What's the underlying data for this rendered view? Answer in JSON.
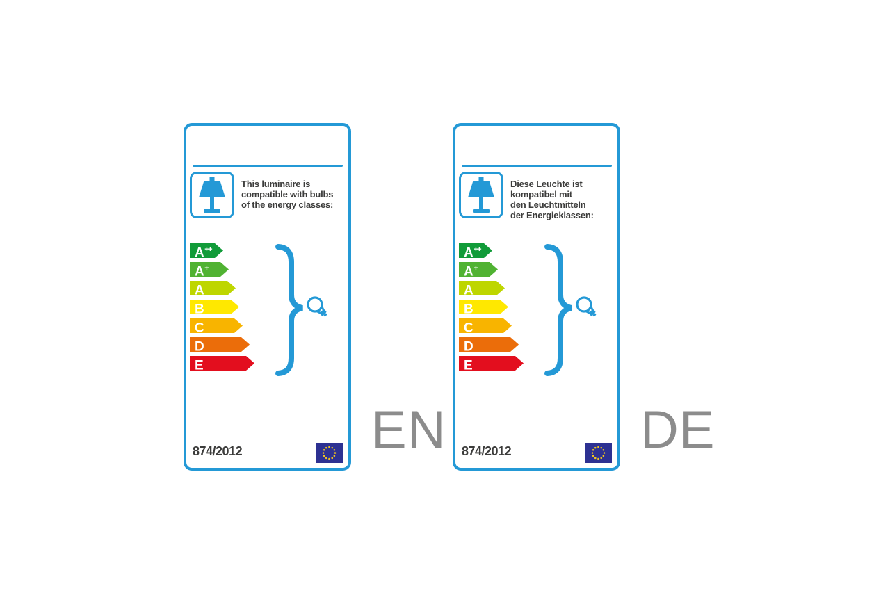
{
  "colors": {
    "accent_blue": "#2499d6",
    "flag_blue": "#2d3192",
    "star_yellow": "#f0c420",
    "ink": "#3c3c3b",
    "lang_gray": "#8c8c8c"
  },
  "icons": {
    "luminaire": "table-lamp-icon",
    "bulb": "light-bulb-icon",
    "flag": "eu-flag"
  },
  "energy_classes": [
    {
      "label": "A",
      "sup": "++",
      "color": "#119b39",
      "arrow_width": 48
    },
    {
      "label": "A",
      "sup": "+",
      "color": "#50b232",
      "arrow_width": 56
    },
    {
      "label": "A",
      "sup": "",
      "color": "#bed600",
      "arrow_width": 66
    },
    {
      "label": "B",
      "sup": "",
      "color": "#ffe800",
      "arrow_width": 71
    },
    {
      "label": "C",
      "sup": "",
      "color": "#f8b400",
      "arrow_width": 76
    },
    {
      "label": "D",
      "sup": "",
      "color": "#eb6d0a",
      "arrow_width": 86
    },
    {
      "label": "E",
      "sup": "",
      "color": "#e30e1e",
      "arrow_width": 93
    }
  ],
  "labels": [
    {
      "language": "EN",
      "intro_lines": [
        "This luminaire is",
        "compatible with bulbs",
        "of the energy classes:"
      ],
      "regulation": "874/2012"
    },
    {
      "language": "DE",
      "intro_lines": [
        "Diese Leuchte ist",
        "kompatibel mit",
        "den Leuchtmitteln",
        "der Energieklassen:"
      ],
      "regulation": "874/2012"
    }
  ]
}
